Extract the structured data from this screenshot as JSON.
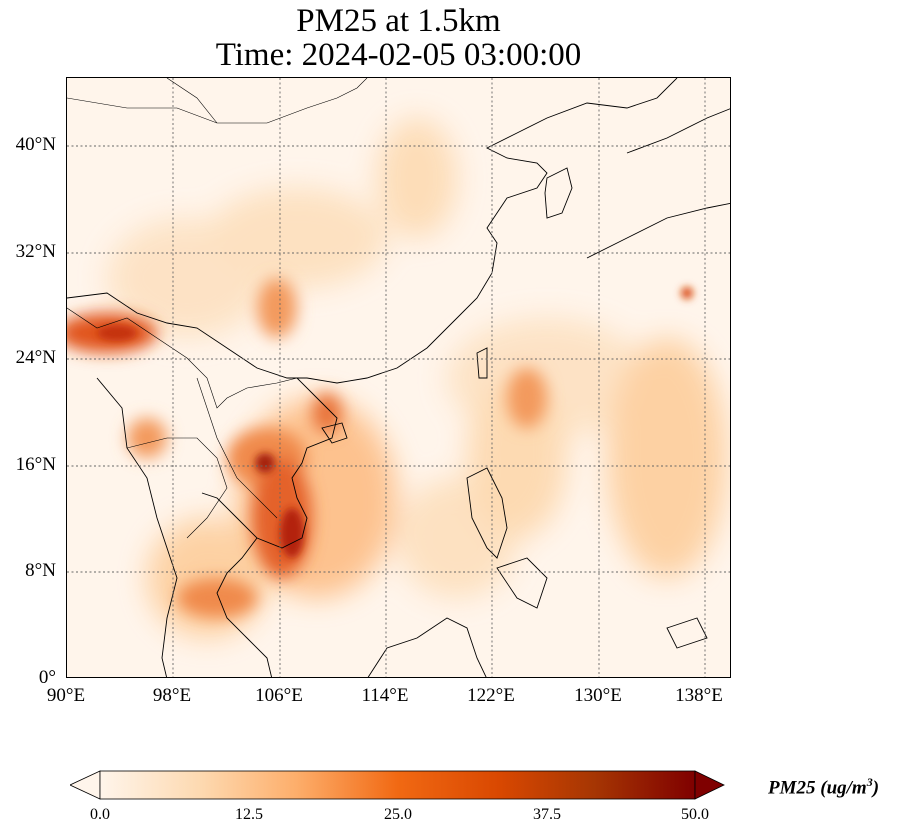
{
  "title_line1": "PM25 at 1.5km",
  "title_line2": "Time: 2024-02-05 03:00:00",
  "lat_ticks": [
    "40°N",
    "32°N",
    "24°N",
    "16°N",
    "8°N",
    "0°"
  ],
  "lon_ticks": [
    "90°E",
    "98°E",
    "106°E",
    "114°E",
    "122°E",
    "130°E",
    "138°E"
  ],
  "colorbar": {
    "label": "PM25 (ug/m",
    "label_sup": "3",
    "label_end": ")",
    "ticks": [
      "0.0",
      "12.5",
      "25.0",
      "37.5",
      "50.0"
    ],
    "min": 0,
    "max": 50,
    "colormap": [
      "#fff5eb",
      "#fdd9b0",
      "#fdae6b",
      "#f16913",
      "#d94801",
      "#a63603",
      "#7f0000"
    ]
  },
  "map": {
    "lat_range": [
      0,
      44
    ],
    "lon_range": [
      90,
      140
    ],
    "gridlines": "dotted",
    "field": "PM25"
  }
}
